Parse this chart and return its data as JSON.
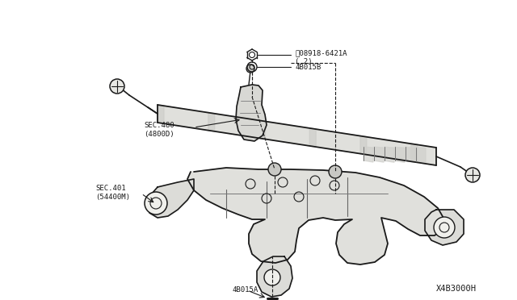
{
  "bg_color": "#f8f8f4",
  "lc": "#1a1a1a",
  "diagram_id": "X4B3000H",
  "figsize": [
    6.4,
    3.72
  ],
  "dpi": 100,
  "labels": {
    "part1_line1": "ⓝ08918-6421A",
    "part1_line2": "( 2)",
    "part2": "4B015B",
    "sec480_line1": "SEC.480",
    "sec480_line2": "(4800D)",
    "sec401_line1": "SEC.401",
    "sec401_line2": "(54400M)",
    "part3": "4B015A"
  },
  "fs": 6.5,
  "fs_id": 7.5
}
